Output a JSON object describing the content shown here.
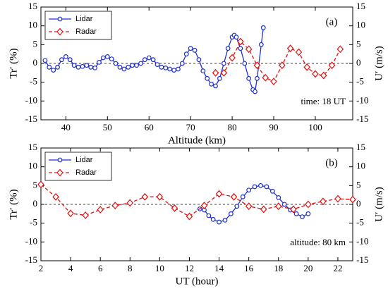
{
  "chart_data": [
    {
      "type": "line",
      "panel_label": "(a)",
      "note": "time: 18 UT",
      "x_label": "Altitude (km)",
      "y_label": "Tr′ (%)",
      "y2_label": "U′ (m/s)",
      "xlim": [
        34,
        109
      ],
      "xticks": [
        40,
        50,
        60,
        70,
        80,
        90,
        100
      ],
      "ylim": [
        -15,
        15
      ],
      "yticks": [
        -15,
        -10,
        -5,
        0,
        5,
        10,
        15
      ],
      "y2lim": [
        -15,
        15
      ],
      "y2ticks": [
        -15,
        -10,
        -5,
        0,
        5,
        10,
        15
      ],
      "legend": "upper left",
      "series": [
        {
          "name": "Lidar",
          "color": "#1f2fd0",
          "marker": "circle",
          "linestyle": "solid",
          "x": [
            35,
            36,
            37,
            38,
            39,
            40,
            41,
            42,
            43,
            44,
            45,
            46,
            47,
            48,
            49,
            50,
            51,
            52,
            53,
            54,
            55,
            56,
            57,
            58,
            59,
            60,
            61,
            62,
            63,
            64,
            65,
            66,
            67,
            68,
            69,
            70,
            71,
            72,
            73,
            74,
            75,
            76,
            77,
            78,
            79,
            80,
            80.5,
            81,
            82,
            83,
            84,
            85,
            85.5,
            86,
            87,
            87.5
          ],
          "values": [
            0.8,
            -1,
            -1.8,
            -1,
            1,
            1.8,
            1,
            -0.5,
            -1,
            -0.8,
            -0.5,
            -1,
            -1.2,
            0.3,
            1.5,
            1.8,
            1.2,
            0,
            -1,
            -1.5,
            -1,
            -0.5,
            -0.5,
            0,
            1,
            1.5,
            1,
            -0.3,
            -1,
            -1.2,
            -1.5,
            -1.8,
            -1.5,
            0,
            2.5,
            4,
            3.5,
            1,
            -2,
            -4,
            -5.5,
            -6,
            -4,
            0,
            4,
            7,
            7.5,
            7,
            4,
            0,
            -4,
            -7,
            -7.5,
            -4,
            5,
            9.5
          ]
        },
        {
          "name": "Radar",
          "color": "#e01010",
          "marker": "diamond",
          "linestyle": "dashed",
          "axis": "y2",
          "x": [
            76,
            78,
            80,
            82,
            84,
            86,
            88,
            90,
            92,
            94,
            96,
            98,
            100,
            102,
            104,
            106
          ],
          "values": [
            -2.5,
            -2.5,
            1.5,
            5.8,
            3.8,
            -0.5,
            -3.8,
            -4.8,
            -0.5,
            4,
            3,
            -1,
            -2.8,
            -3.2,
            -0.5,
            3.8
          ]
        }
      ]
    },
    {
      "type": "line",
      "panel_label": "(b)",
      "note": "altitude: 80 km",
      "x_label": "UT (hour)",
      "y_label": "Tr′ (%)",
      "y2_label": "U′ (m/s)",
      "xlim": [
        2,
        23
      ],
      "xticks": [
        2,
        4,
        6,
        8,
        10,
        12,
        14,
        16,
        18,
        20,
        22
      ],
      "ylim": [
        -15,
        15
      ],
      "yticks": [
        -15,
        -10,
        -5,
        0,
        5,
        10,
        15
      ],
      "y2lim": [
        -15,
        15
      ],
      "y2ticks": [
        -15,
        -10,
        -5,
        0,
        5,
        10,
        15
      ],
      "legend": "upper left",
      "series": [
        {
          "name": "Lidar",
          "color": "#1f2fd0",
          "marker": "circle",
          "linestyle": "solid",
          "x": [
            12.7,
            13,
            13.3,
            13.6,
            14,
            14.4,
            14.8,
            15.2,
            15.6,
            16,
            16.4,
            16.8,
            17.2,
            17.6,
            18,
            18.4,
            18.8,
            19.2,
            19.6,
            20
          ],
          "values": [
            -1.2,
            -1.5,
            -3,
            -4,
            -4.7,
            -4.2,
            -2.5,
            -0.5,
            2,
            3.8,
            4.7,
            5,
            4.7,
            3.5,
            1.8,
            0,
            -1.5,
            -2.5,
            -3.3,
            -2.5
          ]
        },
        {
          "name": "Radar",
          "color": "#e01010",
          "marker": "diamond",
          "linestyle": "dashed",
          "axis": "y2",
          "x": [
            2,
            3,
            4,
            5,
            6,
            7,
            8,
            9,
            10,
            11,
            12,
            13,
            14,
            15,
            16,
            17,
            18,
            19,
            20,
            21,
            22,
            23
          ],
          "values": [
            5.3,
            2,
            -2.4,
            -2.9,
            -1.4,
            -0.3,
            0.4,
            2,
            2,
            -1,
            -3.2,
            -0.3,
            2.8,
            2,
            -0.5,
            -1.3,
            -0.5,
            -1.3,
            0,
            0.8,
            1.5,
            1.3
          ]
        }
      ]
    }
  ]
}
